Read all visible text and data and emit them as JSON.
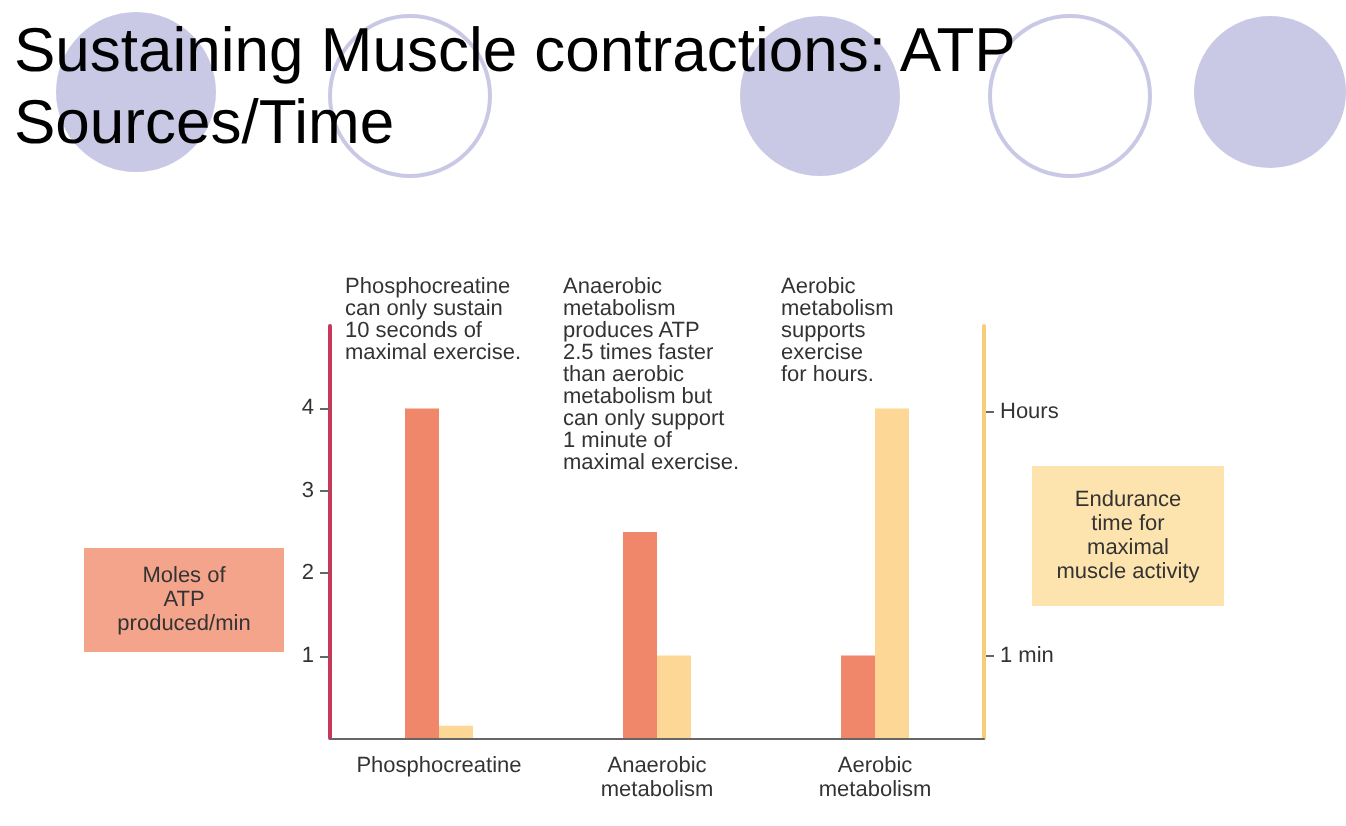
{
  "chart_data": {
    "type": "bar",
    "title": "Sustaining Muscle contractions: ATP\nSources/Time",
    "categories": [
      "Phosphocreatine",
      "Anaerobic\nmetabolism",
      "Aerobic\nmetabolism"
    ],
    "series": [
      {
        "color": "#f0876a",
        "values": [
          4,
          2.5,
          1
        ]
      },
      {
        "color": "#fcd796",
        "values": [
          0.15,
          1,
          4
        ]
      }
    ],
    "ylabel": "Moles of\nATP\nproduced/min",
    "y2label": "Endurance\ntime for\nmaximal\nmuscle activity",
    "ylim": [
      0,
      5
    ],
    "yticks": [
      1,
      2,
      3,
      4
    ],
    "annotations": [
      "Phosphocreatine\ncan only sustain\n10 seconds of\nmaximal exercise.",
      "Anaerobic\nmetabolism\nproduces ATP\n2.5 times faster\nthan aerobic\nmetabolism but\ncan only support\n1 minute of\nmaximal exercise.",
      "Aerobic\nmetabolism\nsupports\nexercise\nfor hours.",
      "1 min",
      "Hours"
    ],
    "grid": false
  }
}
